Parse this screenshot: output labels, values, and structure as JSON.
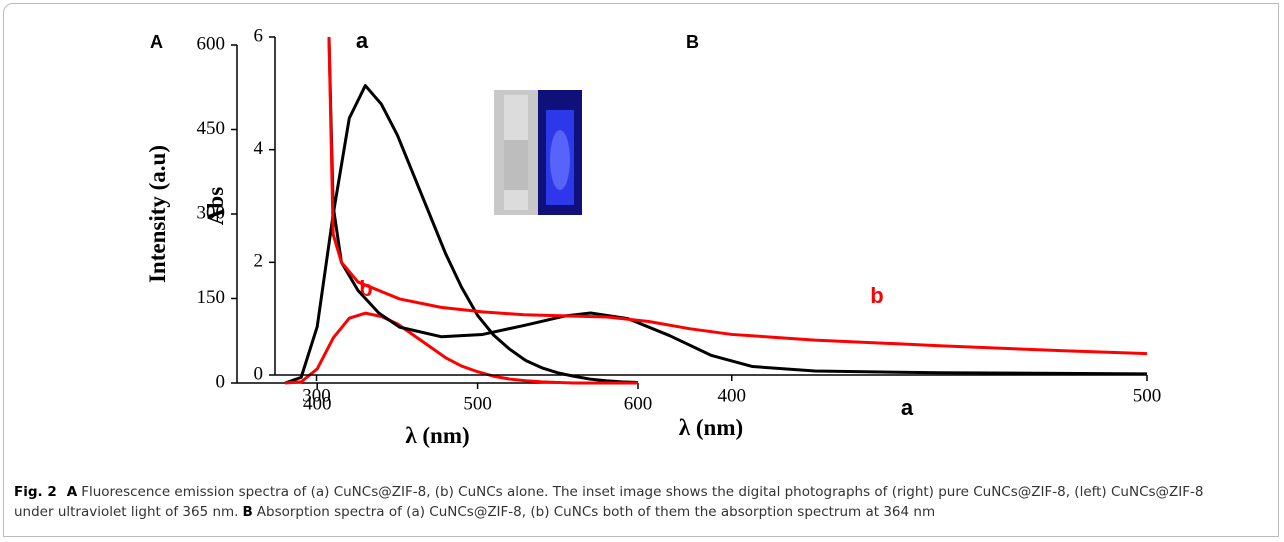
{
  "chart_data": [
    {
      "type": "line",
      "panel": "A",
      "x_label": "λ (nm)",
      "y_label": "Intensity (a.u)",
      "x": [
        380,
        390,
        400,
        410,
        420,
        430,
        440,
        450,
        460,
        470,
        480,
        490,
        500,
        510,
        520,
        530,
        540,
        550,
        560,
        570,
        580,
        590,
        600
      ],
      "series": [
        {
          "name": "a",
          "color": "#000000",
          "values": [
            0,
            10,
            100,
            300,
            470,
            528,
            495,
            440,
            370,
            300,
            230,
            170,
            120,
            85,
            60,
            40,
            27,
            18,
            12,
            7,
            4,
            2,
            1
          ]
        },
        {
          "name": "b",
          "color": "#ff0000",
          "values": [
            0,
            2,
            25,
            80,
            115,
            124,
            118,
            105,
            85,
            65,
            45,
            30,
            20,
            12,
            7,
            4,
            2,
            1,
            0,
            0,
            0,
            0,
            0
          ]
        }
      ],
      "xlim": [
        350,
        600
      ],
      "xticks": [
        400,
        500,
        600
      ],
      "ylim": [
        0,
        600
      ],
      "yticks": [
        0,
        150,
        300,
        450,
        600
      ]
    },
    {
      "type": "line",
      "panel": "B",
      "x_label": "λ (nm)",
      "y_label": "Abs",
      "series": [
        {
          "name": "a",
          "color": "#000000",
          "x": [
            303,
            304,
            306,
            310,
            315,
            320,
            330,
            340,
            350,
            360,
            366,
            375,
            385,
            395,
            405,
            420,
            450,
            500
          ],
          "values": [
            6,
            3,
            2,
            1.5,
            1.1,
            0.85,
            0.68,
            0.72,
            0.88,
            1.05,
            1.1,
            1.0,
            0.7,
            0.35,
            0.15,
            0.07,
            0.04,
            0.02
          ]
        },
        {
          "name": "b",
          "color": "#ff0000",
          "x": [
            303,
            304,
            306,
            310,
            320,
            330,
            340,
            350,
            360,
            370,
            380,
            390,
            400,
            420,
            450,
            480,
            500
          ],
          "values": [
            6,
            2.5,
            2.0,
            1.65,
            1.35,
            1.2,
            1.12,
            1.07,
            1.05,
            1.03,
            0.95,
            0.82,
            0.72,
            0.62,
            0.52,
            0.43,
            0.38
          ]
        }
      ],
      "xlim": [
        290,
        500
      ],
      "xticks": [
        300,
        400,
        500
      ],
      "ylim": [
        0,
        6
      ],
      "yticks": [
        0,
        2,
        4,
        6
      ]
    }
  ],
  "caption": [
    {
      "text": "Fig. 2",
      "bold": true
    },
    {
      "text": "A",
      "bold": true
    },
    {
      "text": "Fluorescence emission spectra of (a) CuNCs@ZIF-8, (b) CuNCs alone. The inset image shows the digital photographs of (right) pure CuNCs@ZIF-8, (left) CuNCs@ZIF-8 under ultraviolet light of 365 nm.",
      "bold": false
    },
    {
      "text": "B",
      "bold": true
    },
    {
      "text": "Absorption spectra of (a) CuNCs@ZIF-8, (b) CuNCs both of them the absorption spectrum at 364 nm",
      "bold": false
    }
  ]
}
